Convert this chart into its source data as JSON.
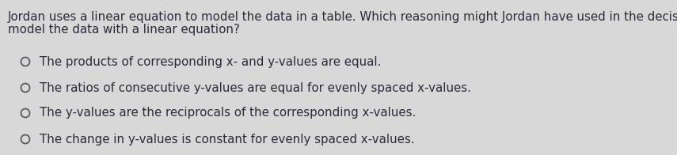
{
  "background_color": "#d8d8d8",
  "question_line1": "Jordan uses a linear equation to model the data in a table. Which reasoning might Jordan have used in the decision to",
  "question_line2": "model the data with a linear equation?",
  "options": [
    "The products of corresponding x- and y-values are equal.",
    "The ratios of consecutive y-values are equal for evenly spaced x-values.",
    "The y-values are the reciprocals of the corresponding x-values.",
    "The change in y-values is constant for evenly spaced x-values."
  ],
  "question_fontsize": 10.8,
  "option_fontsize": 10.8,
  "text_color": "#2a2a3a",
  "circle_color": "#5a5a6a",
  "fig_width": 8.55,
  "fig_height": 1.96,
  "dpi": 100
}
